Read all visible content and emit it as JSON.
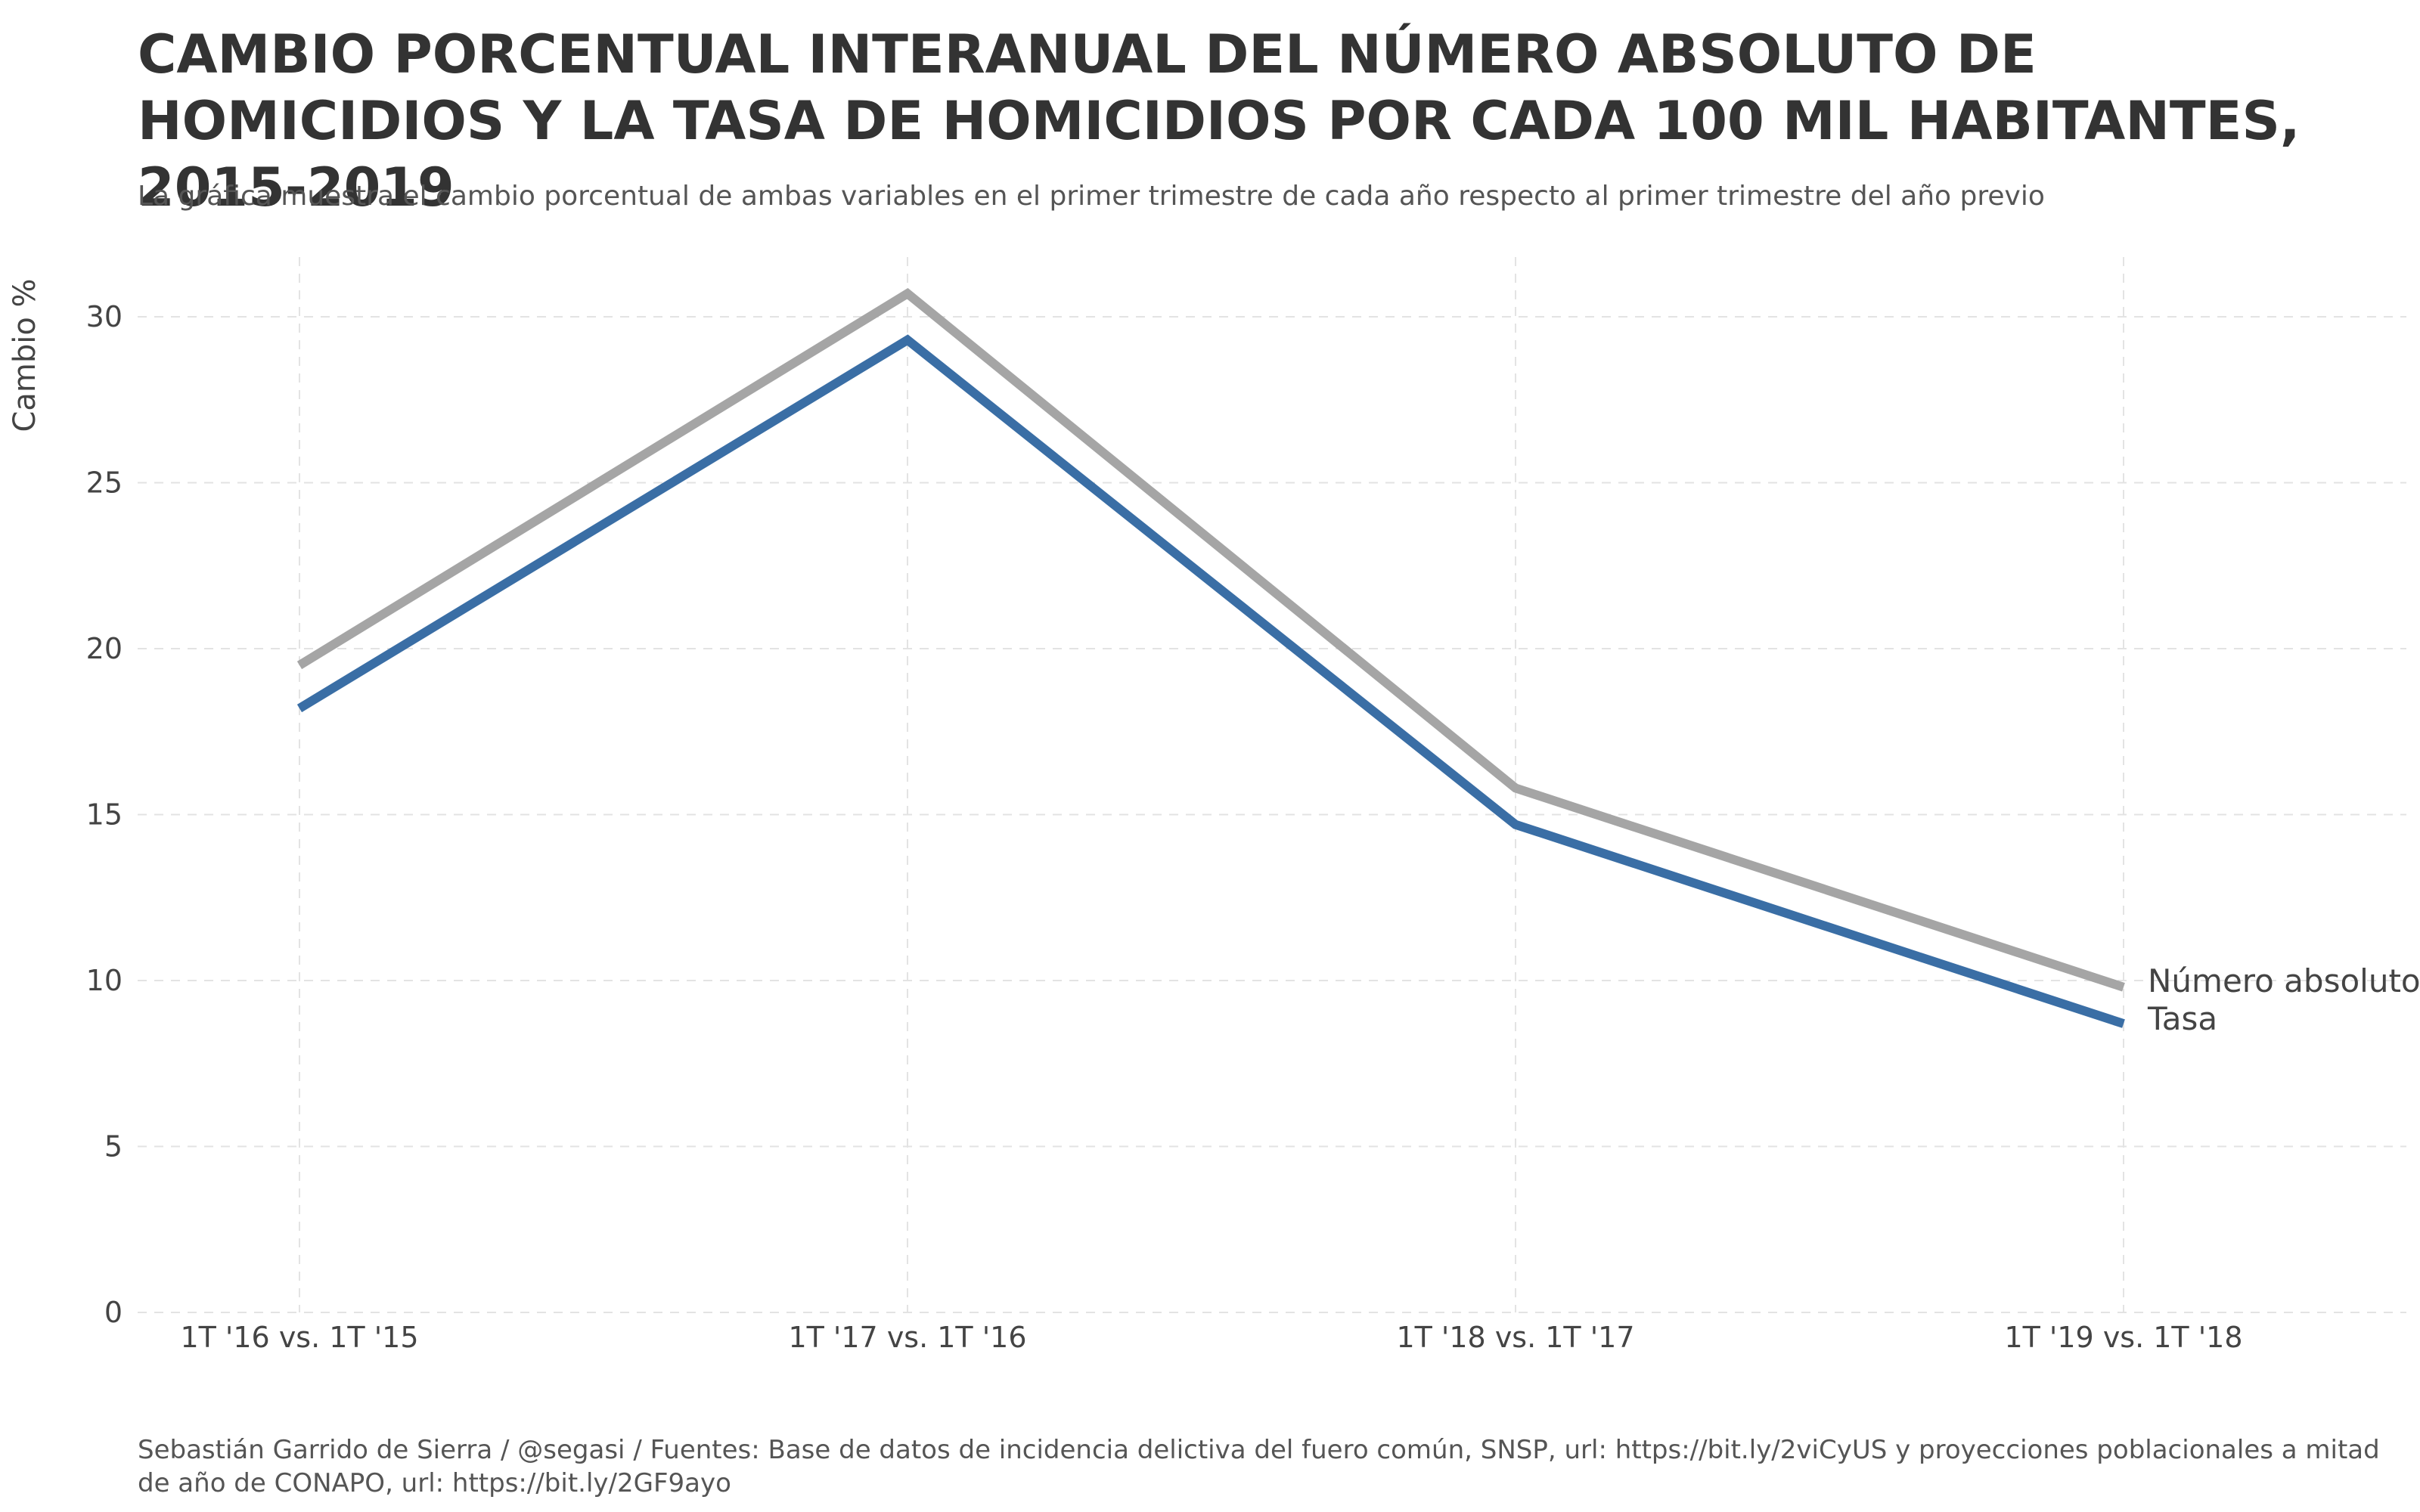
{
  "title": "CAMBIO PORCENTUAL INTERANUAL DEL NÚMERO ABSOLUTO DE HOMICIDIOS Y LA TASA DE HOMICIDIOS POR CADA 100 MIL HABITANTES, 2015-2019",
  "subtitle": "La gráfica muestra el cambio porcentual de ambas variables en el primer trimestre de cada año respecto al primer trimestre del año previo",
  "caption": "Sebastián Garrido de Sierra / @segasi / Fuentes: Base de datos de incidencia delictiva del fuero común, SNSP, url: https://bit.ly/2viCyUS y proyecciones poblacionales a mitad de año de CONAPO, url: https://bit.ly/2GF9ayo",
  "chart_data": {
    "type": "line",
    "title": "CAMBIO PORCENTUAL INTERANUAL DEL NÚMERO ABSOLUTO DE HOMICIDIOS Y LA TASA DE HOMICIDIOS POR CADA 100 MIL HABITANTES, 2015-2019",
    "xlabel": "",
    "ylabel": "Cambio %",
    "categories": [
      "1T '16 vs. 1T '15",
      "1T '17 vs. 1T '16",
      "1T '18 vs. 1T '17",
      "1T '19 vs. 1T '18"
    ],
    "yticks": [
      0,
      5,
      10,
      15,
      20,
      25,
      30
    ],
    "ylim": [
      0,
      31.8
    ],
    "grid": true,
    "legend": "direct labels at right end of lines",
    "series": [
      {
        "name": "Número absoluto",
        "color": "#A5A5A5",
        "values": [
          19.5,
          30.7,
          15.8,
          9.8
        ]
      },
      {
        "name": "Tasa",
        "color": "#3A6EA5",
        "values": [
          18.2,
          29.3,
          14.7,
          8.7
        ]
      }
    ]
  }
}
